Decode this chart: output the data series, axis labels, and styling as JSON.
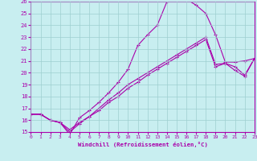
{
  "xlabel": "Windchill (Refroidissement éolien,°C)",
  "bg_color": "#c8eef0",
  "grid_color": "#9ecfcf",
  "line_color": "#aa00aa",
  "xmin": 0,
  "xmax": 23,
  "ymin": 15,
  "ymax": 26,
  "line1_x": [
    0,
    1,
    2,
    3,
    4,
    5,
    6,
    7,
    8,
    9,
    10,
    11,
    12,
    13,
    14,
    15,
    16,
    17,
    18,
    19,
    20,
    21,
    22,
    23
  ],
  "line1_y": [
    16.5,
    16.5,
    16.0,
    15.8,
    14.8,
    16.2,
    16.8,
    17.5,
    18.3,
    19.2,
    20.3,
    22.3,
    23.2,
    24.0,
    26.0,
    26.2,
    26.2,
    25.7,
    25.0,
    23.2,
    20.9,
    20.9,
    21.0,
    21.2
  ],
  "line2_x": [
    0,
    1,
    2,
    3,
    4,
    5,
    6,
    7,
    8,
    9,
    10,
    11,
    12,
    13,
    14,
    15,
    16,
    17,
    18,
    19,
    20,
    21,
    22,
    23
  ],
  "line2_y": [
    16.5,
    16.5,
    16.0,
    15.8,
    15.0,
    15.7,
    16.3,
    17.0,
    17.7,
    18.3,
    19.0,
    19.5,
    20.0,
    20.5,
    21.0,
    21.5,
    22.0,
    22.5,
    23.0,
    20.7,
    20.8,
    20.5,
    19.8,
    21.2
  ],
  "line3_x": [
    0,
    1,
    2,
    3,
    4,
    5,
    6,
    7,
    8,
    9,
    10,
    11,
    12,
    13,
    14,
    15,
    16,
    17,
    18,
    19,
    20,
    21,
    22,
    23
  ],
  "line3_y": [
    16.5,
    16.5,
    16.0,
    15.8,
    15.2,
    15.8,
    16.3,
    16.8,
    17.5,
    18.0,
    18.7,
    19.2,
    19.8,
    20.3,
    20.8,
    21.3,
    21.8,
    22.3,
    22.8,
    20.5,
    20.8,
    20.2,
    19.7,
    21.2
  ]
}
